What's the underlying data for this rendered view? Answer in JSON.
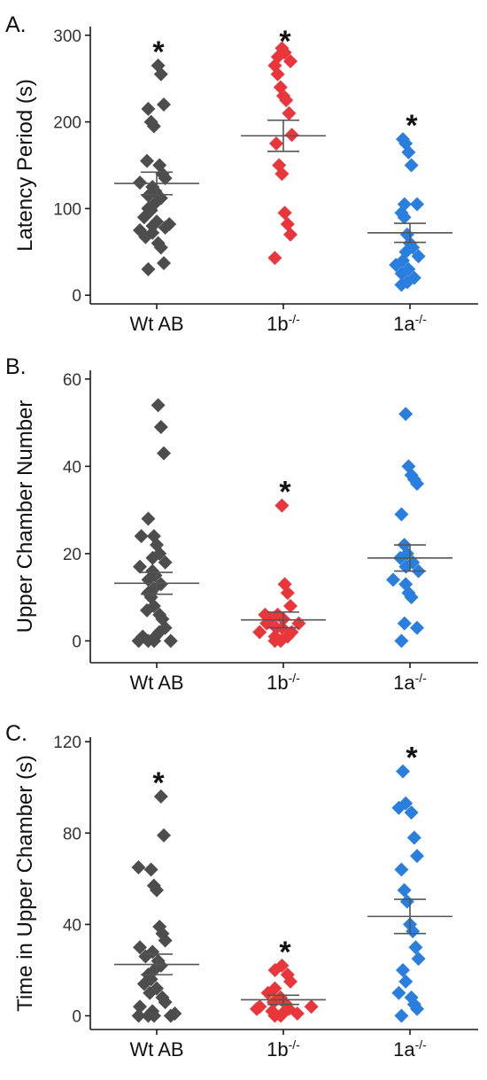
{
  "colors": {
    "wt": "#4d4d4d",
    "b": "#e8363a",
    "a": "#2a7fde",
    "axis": "#1a1a1a",
    "mean": "#555555"
  },
  "chart_data": [
    {
      "type": "scatter",
      "panel_label": "A.",
      "ylabel": "Latency Period (s)",
      "ylim": [
        -10,
        310
      ],
      "yticks": [
        0,
        100,
        200,
        300
      ],
      "groups": [
        {
          "label_main": "Wt AB",
          "label_sup": "",
          "color_key": "wt",
          "mean": 129,
          "sem": 13,
          "significant": true,
          "values": [
            30,
            37,
            55,
            60,
            67,
            72,
            75,
            78,
            80,
            82,
            85,
            90,
            98,
            100,
            105,
            112,
            115,
            120,
            125,
            130,
            135,
            140,
            150,
            155,
            195,
            200,
            215,
            220,
            255,
            265
          ]
        },
        {
          "label_main": "1b",
          "label_sup": "-/-",
          "color_key": "b",
          "mean": 184,
          "sem": 18,
          "significant": true,
          "values": [
            43,
            70,
            82,
            95,
            140,
            150,
            175,
            185,
            210,
            225,
            230,
            240,
            255,
            265,
            270,
            275,
            280,
            285
          ]
        },
        {
          "label_main": "1a",
          "label_sup": "-/-",
          "color_key": "a",
          "mean": 72,
          "sem": 11,
          "significant": true,
          "values": [
            12,
            15,
            20,
            25,
            30,
            35,
            40,
            45,
            50,
            55,
            60,
            70,
            90,
            95,
            105,
            105,
            150,
            165,
            175,
            180
          ]
        }
      ]
    },
    {
      "type": "scatter",
      "panel_label": "B.",
      "ylabel": "Upper Chamber Number",
      "ylim": [
        -5,
        62
      ],
      "yticks": [
        0,
        20,
        40,
        60
      ],
      "groups": [
        {
          "label_main": "Wt AB",
          "label_sup": "",
          "color_key": "wt",
          "mean": 13.2,
          "sem": 2.5,
          "significant": false,
          "values": [
            0,
            0,
            0,
            0,
            1,
            1,
            2,
            3,
            5,
            6,
            7,
            8,
            10,
            11,
            12,
            13,
            14,
            15,
            16,
            17,
            18,
            19,
            20,
            22,
            24,
            24,
            28,
            43,
            49,
            54
          ]
        },
        {
          "label_main": "1b",
          "label_sup": "-/-",
          "color_key": "b",
          "mean": 4.8,
          "sem": 1.8,
          "significant": true,
          "values": [
            0,
            0,
            1,
            1,
            2,
            2,
            3,
            3,
            4,
            4,
            5,
            5,
            6,
            6,
            8,
            11,
            13,
            31
          ]
        },
        {
          "label_main": "1a",
          "label_sup": "-/-",
          "color_key": "a",
          "mean": 19,
          "sem": 3,
          "significant": false,
          "values": [
            0,
            3,
            4,
            10,
            11,
            13,
            14,
            16,
            17,
            18,
            19,
            20,
            22,
            29,
            36,
            37,
            38,
            40,
            52
          ]
        }
      ]
    },
    {
      "type": "scatter",
      "panel_label": "C.",
      "ylabel": "Time in Upper Chamber (s)",
      "ylim": [
        -6,
        122
      ],
      "yticks": [
        0,
        40,
        80,
        120
      ],
      "groups": [
        {
          "label_main": "Wt AB",
          "label_sup": "",
          "color_key": "wt",
          "mean": 22.5,
          "sem": 4.5,
          "significant": true,
          "values": [
            0,
            0,
            0,
            0,
            1,
            2,
            4,
            6,
            8,
            10,
            12,
            14,
            16,
            18,
            20,
            22,
            24,
            26,
            28,
            30,
            33,
            36,
            39,
            55,
            57,
            64,
            65,
            79,
            96
          ]
        },
        {
          "label_main": "1b",
          "label_sup": "-/-",
          "color_key": "b",
          "mean": 7,
          "sem": 2,
          "significant": true,
          "values": [
            0,
            0,
            1,
            2,
            2,
            3,
            3,
            4,
            4,
            5,
            6,
            8,
            10,
            12,
            15,
            18,
            20,
            22
          ]
        },
        {
          "label_main": "1a",
          "label_sup": "-/-",
          "color_key": "a",
          "mean": 43.5,
          "sem": 7.5,
          "significant": true,
          "values": [
            0,
            3,
            5,
            8,
            10,
            15,
            20,
            25,
            30,
            37,
            40,
            50,
            55,
            64,
            70,
            78,
            89,
            91,
            93,
            107
          ]
        }
      ]
    }
  ]
}
